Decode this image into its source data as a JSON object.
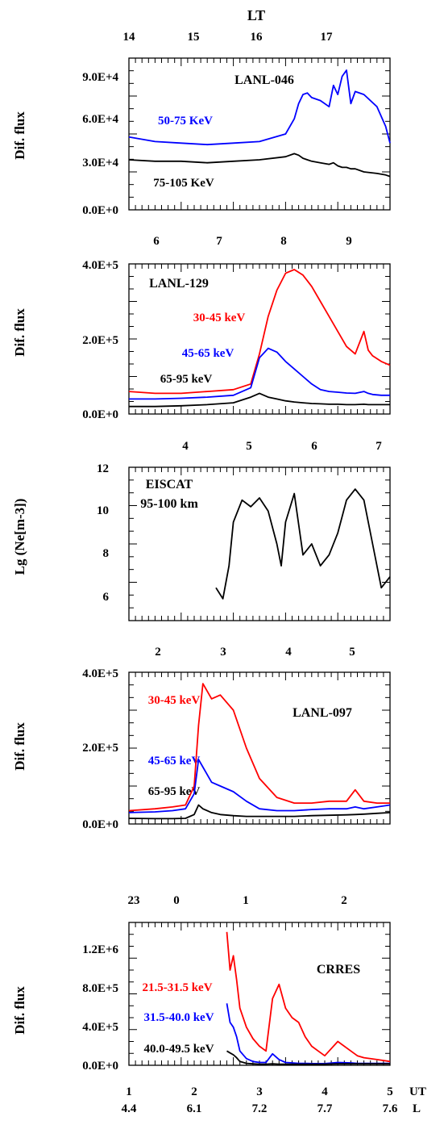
{
  "colors": {
    "red": "#ff0000",
    "blue": "#0000ff",
    "black": "#000000"
  },
  "chart_data": [
    {
      "type": "line",
      "title": "LANL-046",
      "ylabel": "Dif. flux",
      "ylim": [
        0,
        100000
      ],
      "y_tick_labels": [
        "9.0E+4",
        "6.0E+4",
        "3.0E+4",
        "0.0E+0"
      ],
      "top_axis_title": "LT",
      "top_axis_ticks": [
        "14",
        "15",
        "16",
        "17"
      ],
      "x": [
        0,
        0.3,
        0.6,
        0.9,
        1.2,
        1.5,
        1.8,
        1.9,
        1.95,
        2.0,
        2.05,
        2.1,
        2.2,
        2.3,
        2.35,
        2.4,
        2.45,
        2.5,
        2.55,
        2.6,
        2.7,
        2.85,
        2.95,
        3.0
      ],
      "series": [
        {
          "name": "50-75 KeV",
          "color": "#0000ff",
          "values": [
            48000,
            45000,
            44000,
            43000,
            44000,
            45000,
            50000,
            60000,
            70000,
            76000,
            77000,
            74000,
            72000,
            68000,
            82000,
            76000,
            88000,
            92000,
            70000,
            78000,
            76000,
            68000,
            55000,
            44000
          ]
        },
        {
          "name": "75-105 KeV",
          "color": "#000000",
          "values": [
            33000,
            32000,
            32000,
            31000,
            32000,
            33000,
            35000,
            37000,
            36000,
            34000,
            33000,
            32000,
            31000,
            30000,
            31000,
            29000,
            28000,
            28000,
            27000,
            27000,
            25000,
            24000,
            23000,
            22000
          ]
        }
      ]
    },
    {
      "type": "line",
      "title": "LANL-129",
      "ylabel": "Dif. flux",
      "ylim": [
        0,
        400000
      ],
      "y_tick_labels": [
        "4.0E+5",
        "2.0E+5",
        "0.0E+0"
      ],
      "top_axis_ticks": [
        "6",
        "7",
        "8",
        "9"
      ],
      "x": [
        0,
        0.3,
        0.6,
        0.9,
        1.2,
        1.4,
        1.5,
        1.6,
        1.7,
        1.8,
        1.9,
        2.0,
        2.1,
        2.2,
        2.3,
        2.4,
        2.5,
        2.6,
        2.7,
        2.75,
        2.8,
        2.9,
        3.0
      ],
      "series": [
        {
          "name": "30-45 keV",
          "color": "#ff0000",
          "values": [
            60000,
            55000,
            55000,
            60000,
            65000,
            80000,
            160000,
            260000,
            330000,
            375000,
            385000,
            370000,
            340000,
            300000,
            260000,
            220000,
            180000,
            160000,
            220000,
            170000,
            155000,
            140000,
            130000
          ]
        },
        {
          "name": "45-65 keV",
          "color": "#0000ff",
          "values": [
            40000,
            40000,
            42000,
            45000,
            50000,
            70000,
            150000,
            175000,
            165000,
            140000,
            120000,
            100000,
            80000,
            65000,
            60000,
            58000,
            56000,
            55000,
            60000,
            55000,
            52000,
            50000,
            50000
          ]
        },
        {
          "name": "65-95 keV",
          "color": "#000000",
          "values": [
            20000,
            20000,
            22000,
            25000,
            30000,
            45000,
            55000,
            45000,
            40000,
            35000,
            32000,
            30000,
            28000,
            27000,
            26000,
            26000,
            25000,
            25000,
            26000,
            25000,
            25000,
            25000,
            25000
          ]
        }
      ]
    },
    {
      "type": "line",
      "title": "EISCAT",
      "subtitle": "95-100 km",
      "ylabel": "Lg (Ne[m-3])",
      "ylim": [
        5,
        12
      ],
      "y_tick_labels": [
        "12",
        "10",
        "8",
        "6"
      ],
      "top_axis_ticks": [
        "4",
        "5",
        "6",
        "7"
      ],
      "x": [
        1.0,
        1.08,
        1.15,
        1.2,
        1.3,
        1.4,
        1.5,
        1.6,
        1.7,
        1.75,
        1.8,
        1.9,
        2.0,
        2.1,
        2.2,
        2.3,
        2.4,
        2.5,
        2.6,
        2.7,
        2.8,
        2.9,
        3.0
      ],
      "series": [
        {
          "name": "",
          "color": "#000000",
          "values": [
            6.5,
            6.0,
            7.5,
            9.5,
            10.5,
            10.2,
            10.6,
            10.0,
            8.5,
            7.5,
            9.5,
            10.8,
            8.0,
            8.5,
            7.5,
            8.0,
            9.0,
            10.5,
            11.0,
            10.5,
            8.5,
            6.5,
            7.0
          ]
        }
      ]
    },
    {
      "type": "line",
      "title": "LANL-097",
      "ylabel": "Dif. flux",
      "ylim": [
        0,
        400000
      ],
      "y_tick_labels": [
        "4.0E+5",
        "2.0E+5",
        "0.0E+0"
      ],
      "top_axis_ticks": [
        "2",
        "3",
        "4",
        "5"
      ],
      "x": [
        0,
        0.3,
        0.5,
        0.65,
        0.75,
        0.8,
        0.85,
        0.95,
        1.05,
        1.2,
        1.35,
        1.5,
        1.7,
        1.9,
        2.1,
        2.3,
        2.5,
        2.6,
        2.7,
        2.85,
        3.0
      ],
      "series": [
        {
          "name": "30-45 keV",
          "color": "#ff0000",
          "values": [
            35000,
            40000,
            45000,
            50000,
            100000,
            260000,
            370000,
            330000,
            340000,
            300000,
            200000,
            120000,
            70000,
            55000,
            55000,
            60000,
            60000,
            90000,
            60000,
            55000,
            55000
          ]
        },
        {
          "name": "45-65 keV",
          "color": "#0000ff",
          "values": [
            30000,
            32000,
            35000,
            40000,
            80000,
            170000,
            150000,
            110000,
            100000,
            85000,
            60000,
            40000,
            35000,
            35000,
            38000,
            40000,
            40000,
            45000,
            40000,
            45000,
            50000
          ]
        },
        {
          "name": "65-95 keV",
          "color": "#000000",
          "values": [
            15000,
            14000,
            14000,
            15000,
            25000,
            50000,
            40000,
            30000,
            25000,
            22000,
            20000,
            20000,
            20000,
            20000,
            22000,
            23000,
            24000,
            25000,
            26000,
            28000,
            30000
          ]
        }
      ]
    },
    {
      "type": "line",
      "title": "CRRES",
      "ylabel": "Dif. flux",
      "ylim": [
        0,
        1500000
      ],
      "y_tick_labels": [
        "1.2E+6",
        "8.0E+5",
        "4.0E+5",
        "0.0E+0"
      ],
      "top_axis_ticks": [
        "23",
        "0",
        "1",
        "2"
      ],
      "x_tick_labels": [
        "1",
        "2",
        "3",
        "4",
        "5"
      ],
      "l_tick_labels": [
        "4.4",
        "6.1",
        "7.2",
        "7.7",
        "7.6"
      ],
      "x_axis_label": "UT",
      "l_axis_label": "L",
      "x": [
        2.5,
        2.55,
        2.6,
        2.65,
        2.7,
        2.8,
        2.9,
        3.0,
        3.1,
        3.2,
        3.3,
        3.4,
        3.5,
        3.6,
        3.7,
        3.8,
        3.9,
        4.0,
        4.2,
        4.4,
        4.5,
        4.6,
        4.8,
        5.0
      ],
      "series": [
        {
          "name": "21.5-31.5 keV",
          "color": "#ff0000",
          "values": [
            1400000,
            1000000,
            1150000,
            900000,
            600000,
            400000,
            280000,
            200000,
            150000,
            700000,
            850000,
            600000,
            500000,
            450000,
            300000,
            200000,
            150000,
            100000,
            250000,
            150000,
            100000,
            80000,
            60000,
            40000
          ]
        },
        {
          "name": "31.5-40.0 keV",
          "color": "#0000ff",
          "values": [
            650000,
            450000,
            400000,
            300000,
            150000,
            70000,
            40000,
            30000,
            30000,
            120000,
            60000,
            30000,
            25000,
            20000,
            20000,
            18000,
            18000,
            18000,
            30000,
            25000,
            20000,
            20000,
            20000,
            20000
          ]
        },
        {
          "name": "40.0-49.5 keV",
          "color": "#000000",
          "values": [
            150000,
            130000,
            110000,
            80000,
            40000,
            20000,
            15000,
            12000,
            12000,
            15000,
            12000,
            12000,
            12000,
            12000,
            12000,
            12000,
            12000,
            12000,
            15000,
            15000,
            15000,
            15000,
            15000,
            15000
          ]
        }
      ]
    }
  ]
}
